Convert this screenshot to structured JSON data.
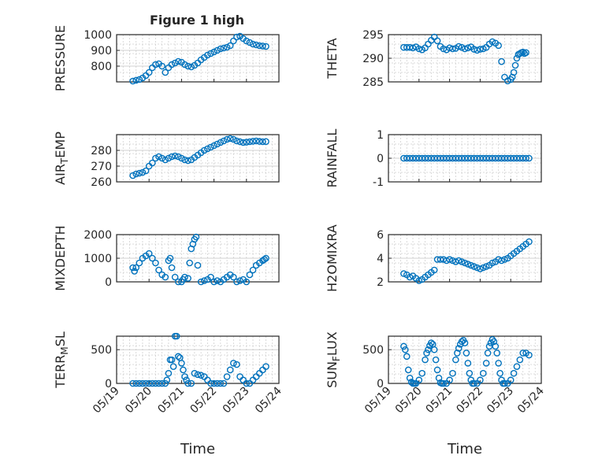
{
  "figure": {
    "title": "Figure 1 high",
    "marker_color": "#0072BD"
  },
  "chart_data": [
    {
      "type": "scatter",
      "ylabel": "PRESSURE",
      "ylim": [
        700,
        1000
      ],
      "yticks": [
        800,
        900,
        1000
      ],
      "xlim": [
        0,
        5
      ],
      "xtick_labels": [
        "05/19",
        "05/20",
        "05/21",
        "05/22",
        "05/23",
        "05/24"
      ],
      "xlabel": "",
      "grid": true,
      "x": [
        0.5,
        0.6,
        0.7,
        0.8,
        0.9,
        1.0,
        1.1,
        1.2,
        1.3,
        1.4,
        1.5,
        1.6,
        1.7,
        1.8,
        1.9,
        2.0,
        2.1,
        2.2,
        2.3,
        2.4,
        2.5,
        2.6,
        2.7,
        2.8,
        2.9,
        3.0,
        3.1,
        3.2,
        3.3,
        3.4,
        3.5,
        3.6,
        3.7,
        3.8,
        3.9,
        4.0,
        4.1,
        4.2,
        4.3,
        4.4,
        4.5,
        4.6
      ],
      "y": [
        705,
        710,
        715,
        725,
        740,
        760,
        790,
        810,
        815,
        800,
        760,
        790,
        810,
        820,
        830,
        825,
        810,
        800,
        795,
        805,
        820,
        840,
        855,
        870,
        880,
        890,
        900,
        910,
        915,
        920,
        930,
        960,
        985,
        990,
        975,
        960,
        950,
        940,
        935,
        930,
        928,
        925
      ]
    },
    {
      "type": "scatter",
      "ylabel": "THETA",
      "ylim": [
        285,
        295
      ],
      "yticks": [
        285,
        290,
        295
      ],
      "xlim": [
        0,
        5
      ],
      "xtick_labels": [
        "05/19",
        "05/20",
        "05/21",
        "05/22",
        "05/23",
        "05/24"
      ],
      "xlabel": "",
      "grid": true,
      "x": [
        0.5,
        0.6,
        0.7,
        0.8,
        0.9,
        1.0,
        1.1,
        1.2,
        1.3,
        1.4,
        1.5,
        1.6,
        1.7,
        1.8,
        1.9,
        2.0,
        2.1,
        2.2,
        2.3,
        2.4,
        2.5,
        2.6,
        2.7,
        2.8,
        2.9,
        3.0,
        3.1,
        3.2,
        3.3,
        3.4,
        3.5,
        3.6,
        3.7,
        3.8,
        3.9,
        4.0,
        4.05,
        4.1,
        4.15,
        4.2,
        4.25,
        4.3,
        4.35,
        4.4,
        4.45,
        4.5
      ],
      "y": [
        292.3,
        292.3,
        292.3,
        292.2,
        292.4,
        292.0,
        291.8,
        292.2,
        293.0,
        293.8,
        294.5,
        293.7,
        292.5,
        292.0,
        291.8,
        292.2,
        292.0,
        292.1,
        292.5,
        292.3,
        292.0,
        292.2,
        292.4,
        291.9,
        291.7,
        291.9,
        292.0,
        292.3,
        293.0,
        293.5,
        293.2,
        292.7,
        289.3,
        286.0,
        285.2,
        285.5,
        286.0,
        287.0,
        288.5,
        290.0,
        290.8,
        291.0,
        291.2,
        291.3,
        291.0,
        291.2
      ]
    },
    {
      "type": "scatter",
      "ylabel": "AIR_TEMP",
      "ylim": [
        260,
        290
      ],
      "yticks": [
        260,
        270,
        280
      ],
      "xlim": [
        0,
        5
      ],
      "xtick_labels": [
        "05/19",
        "05/20",
        "05/21",
        "05/22",
        "05/23",
        "05/24"
      ],
      "xlabel": "",
      "grid": true,
      "x": [
        0.5,
        0.6,
        0.7,
        0.8,
        0.9,
        1.0,
        1.1,
        1.2,
        1.3,
        1.4,
        1.5,
        1.6,
        1.7,
        1.8,
        1.9,
        2.0,
        2.1,
        2.2,
        2.3,
        2.4,
        2.5,
        2.6,
        2.7,
        2.8,
        2.9,
        3.0,
        3.1,
        3.2,
        3.3,
        3.4,
        3.5,
        3.6,
        3.7,
        3.8,
        3.9,
        4.0,
        4.1,
        4.2,
        4.3,
        4.4,
        4.5,
        4.6
      ],
      "y": [
        264,
        265,
        265.5,
        266,
        267,
        270,
        272,
        275,
        276,
        275,
        274,
        275,
        276,
        276.5,
        276,
        275,
        274,
        273.5,
        274,
        275.5,
        277,
        278.5,
        280,
        281,
        282,
        283,
        284,
        285,
        286,
        287,
        287.5,
        287,
        286,
        285.5,
        285,
        285.2,
        285.5,
        285.8,
        286,
        285.7,
        285.5,
        285.6
      ]
    },
    {
      "type": "scatter",
      "ylabel": "RAINFALL",
      "ylim": [
        -1,
        1
      ],
      "yticks": [
        -1,
        0,
        1
      ],
      "xlim": [
        0,
        5
      ],
      "xtick_labels": [
        "05/19",
        "05/20",
        "05/21",
        "05/22",
        "05/23",
        "05/24"
      ],
      "xlabel": "",
      "grid": true,
      "x": [
        0.5,
        0.6,
        0.7,
        0.8,
        0.9,
        1.0,
        1.1,
        1.2,
        1.3,
        1.4,
        1.5,
        1.6,
        1.7,
        1.8,
        1.9,
        2.0,
        2.1,
        2.2,
        2.3,
        2.4,
        2.5,
        2.6,
        2.7,
        2.8,
        2.9,
        3.0,
        3.1,
        3.2,
        3.3,
        3.4,
        3.5,
        3.6,
        3.7,
        3.8,
        3.9,
        4.0,
        4.1,
        4.2,
        4.3,
        4.4,
        4.5,
        4.6
      ],
      "y": [
        0,
        0,
        0,
        0,
        0,
        0,
        0,
        0,
        0,
        0,
        0,
        0,
        0,
        0,
        0,
        0,
        0,
        0,
        0,
        0,
        0,
        0,
        0,
        0,
        0,
        0,
        0,
        0,
        0,
        0,
        0,
        0,
        0,
        0,
        0,
        0,
        0,
        0,
        0,
        0,
        0,
        0
      ]
    },
    {
      "type": "scatter",
      "ylabel": "MIXDEPTH",
      "ylim": [
        0,
        2000
      ],
      "yticks": [
        0,
        1000,
        2000
      ],
      "xlim": [
        0,
        5
      ],
      "xtick_labels": [
        "05/19",
        "05/20",
        "05/21",
        "05/22",
        "05/23",
        "05/24"
      ],
      "xlabel": "",
      "grid": true,
      "x": [
        0.5,
        0.55,
        0.6,
        0.7,
        0.8,
        0.9,
        1.0,
        1.1,
        1.2,
        1.3,
        1.4,
        1.5,
        1.6,
        1.65,
        1.7,
        1.8,
        1.9,
        2.0,
        2.05,
        2.1,
        2.2,
        2.25,
        2.3,
        2.35,
        2.4,
        2.45,
        2.5,
        2.6,
        2.7,
        2.8,
        2.9,
        3.0,
        3.1,
        3.2,
        3.3,
        3.4,
        3.5,
        3.6,
        3.7,
        3.8,
        3.9,
        4.0,
        4.1,
        4.2,
        4.3,
        4.4,
        4.5,
        4.55,
        4.6
      ],
      "y": [
        600,
        450,
        600,
        800,
        1000,
        1100,
        1200,
        1000,
        800,
        500,
        300,
        200,
        900,
        1000,
        600,
        200,
        0,
        0,
        100,
        200,
        150,
        800,
        1400,
        1600,
        1800,
        1900,
        700,
        0,
        50,
        100,
        200,
        0,
        50,
        0,
        100,
        200,
        300,
        200,
        0,
        50,
        100,
        0,
        300,
        500,
        700,
        800,
        900,
        950,
        1000
      ]
    },
    {
      "type": "scatter",
      "ylabel": "H2OMIXRA",
      "ylim": [
        2,
        6
      ],
      "yticks": [
        2,
        4,
        6
      ],
      "xlim": [
        0,
        5
      ],
      "xtick_labels": [
        "05/19",
        "05/20",
        "05/21",
        "05/22",
        "05/23",
        "05/24"
      ],
      "xlabel": "",
      "grid": true,
      "x": [
        0.5,
        0.6,
        0.7,
        0.8,
        0.9,
        1.0,
        1.1,
        1.2,
        1.3,
        1.4,
        1.5,
        1.6,
        1.7,
        1.8,
        1.9,
        2.0,
        2.1,
        2.2,
        2.3,
        2.4,
        2.5,
        2.6,
        2.7,
        2.8,
        2.9,
        3.0,
        3.1,
        3.2,
        3.3,
        3.4,
        3.5,
        3.6,
        3.7,
        3.8,
        3.9,
        4.0,
        4.1,
        4.2,
        4.3,
        4.4,
        4.5,
        4.6
      ],
      "y": [
        2.7,
        2.6,
        2.4,
        2.5,
        2.3,
        2.1,
        2.2,
        2.4,
        2.6,
        2.8,
        3.0,
        3.9,
        3.9,
        3.9,
        3.8,
        3.9,
        3.8,
        3.7,
        3.8,
        3.7,
        3.6,
        3.5,
        3.4,
        3.3,
        3.2,
        3.1,
        3.2,
        3.3,
        3.4,
        3.6,
        3.7,
        3.9,
        3.8,
        3.9,
        4.0,
        4.2,
        4.4,
        4.6,
        4.8,
        5.0,
        5.2,
        5.4
      ]
    },
    {
      "type": "scatter",
      "ylabel": "TERR_MSL",
      "ylim": [
        0,
        700
      ],
      "yticks": [
        0,
        500
      ],
      "xlim": [
        0,
        5
      ],
      "xtick_labels": [
        "05/19",
        "05/20",
        "05/21",
        "05/22",
        "05/23",
        "05/24"
      ],
      "xlabel": "Time",
      "grid": true,
      "x": [
        0.5,
        0.6,
        0.7,
        0.8,
        0.9,
        1.0,
        1.1,
        1.2,
        1.3,
        1.4,
        1.5,
        1.55,
        1.6,
        1.65,
        1.7,
        1.75,
        1.8,
        1.85,
        1.9,
        1.95,
        2.0,
        2.05,
        2.1,
        2.15,
        2.2,
        2.3,
        2.4,
        2.5,
        2.6,
        2.7,
        2.8,
        2.9,
        3.0,
        3.1,
        3.2,
        3.3,
        3.4,
        3.5,
        3.6,
        3.7,
        3.8,
        3.9,
        4.0,
        4.1,
        4.2,
        4.3,
        4.4,
        4.5,
        4.6
      ],
      "y": [
        0,
        0,
        0,
        0,
        0,
        0,
        0,
        0,
        0,
        0,
        0,
        50,
        150,
        350,
        350,
        250,
        700,
        700,
        400,
        380,
        300,
        200,
        100,
        50,
        0,
        0,
        150,
        130,
        120,
        100,
        50,
        0,
        0,
        0,
        0,
        0,
        100,
        200,
        300,
        280,
        100,
        50,
        0,
        0,
        50,
        100,
        150,
        200,
        250
      ]
    },
    {
      "type": "scatter",
      "ylabel": "SUN_FLUX",
      "ylim": [
        0,
        700
      ],
      "yticks": [
        0,
        500
      ],
      "xlim": [
        0,
        5
      ],
      "xtick_labels": [
        "05/19",
        "05/20",
        "05/21",
        "05/22",
        "05/23",
        "05/24"
      ],
      "xlabel": "Time",
      "grid": true,
      "x": [
        0.5,
        0.55,
        0.6,
        0.65,
        0.7,
        0.75,
        0.8,
        0.85,
        0.9,
        1.0,
        1.1,
        1.2,
        1.25,
        1.3,
        1.35,
        1.4,
        1.45,
        1.5,
        1.55,
        1.6,
        1.65,
        1.7,
        1.75,
        1.8,
        1.9,
        2.0,
        2.1,
        2.2,
        2.25,
        2.3,
        2.35,
        2.4,
        2.45,
        2.5,
        2.55,
        2.6,
        2.65,
        2.7,
        2.75,
        2.8,
        2.9,
        3.0,
        3.1,
        3.2,
        3.25,
        3.3,
        3.35,
        3.4,
        3.45,
        3.5,
        3.55,
        3.6,
        3.65,
        3.7,
        3.75,
        3.8,
        3.9,
        4.0,
        4.1,
        4.2,
        4.3,
        4.4,
        4.5,
        4.6
      ],
      "y": [
        550,
        500,
        400,
        200,
        80,
        20,
        0,
        0,
        0,
        50,
        150,
        350,
        450,
        500,
        560,
        600,
        580,
        500,
        350,
        200,
        80,
        10,
        0,
        0,
        0,
        50,
        150,
        350,
        450,
        520,
        580,
        620,
        640,
        600,
        450,
        300,
        150,
        50,
        0,
        0,
        0,
        50,
        150,
        300,
        450,
        550,
        600,
        650,
        620,
        550,
        450,
        300,
        150,
        50,
        0,
        0,
        0,
        50,
        150,
        250,
        350,
        450,
        450,
        420
      ]
    }
  ]
}
